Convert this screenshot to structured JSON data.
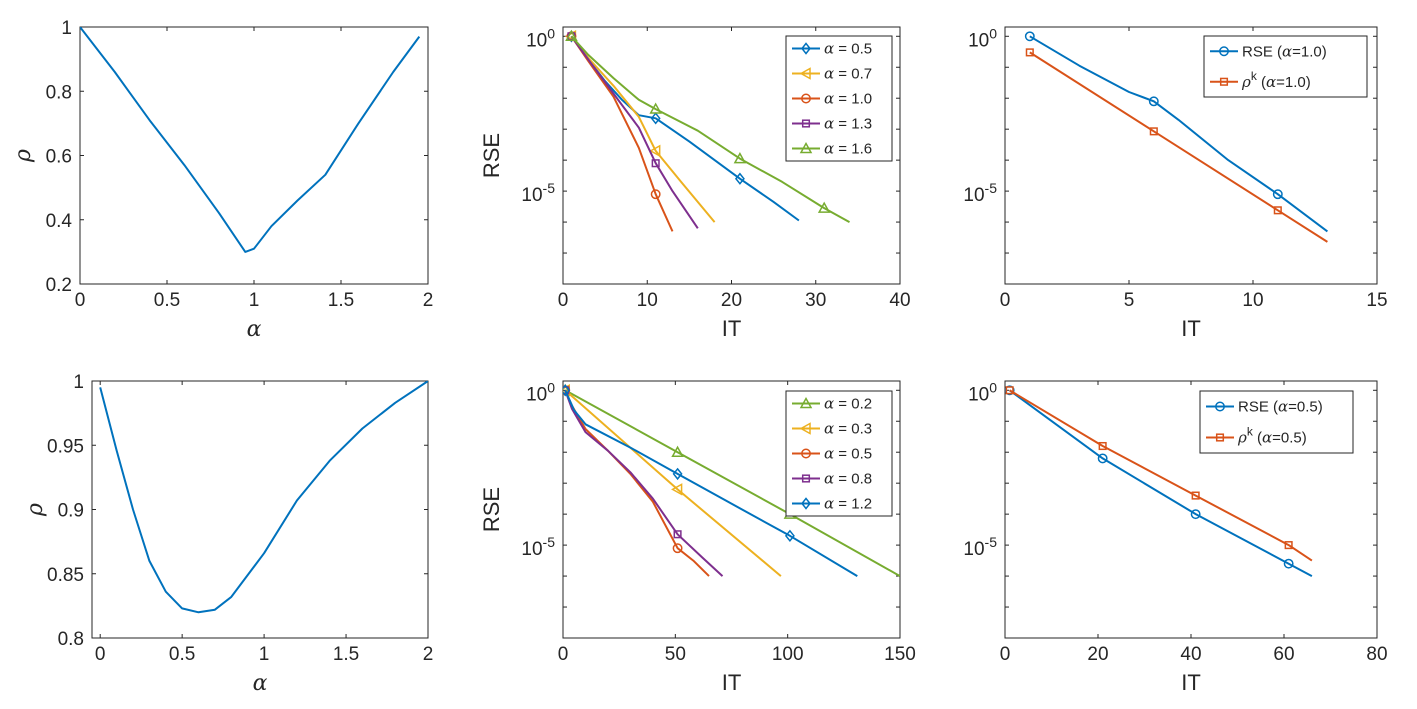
{
  "colors": {
    "blue": "#0072BD",
    "orange": "#D95319",
    "yellow": "#EDB120",
    "purple": "#7E2F8E",
    "green": "#77AC30",
    "axis": "#262626"
  },
  "chart_data": [
    {
      "id": "top-left",
      "type": "line",
      "yscale": "linear",
      "xlabel": "α",
      "ylabel": "ρ",
      "xlim": [
        0,
        2
      ],
      "ylim": [
        0.2,
        1
      ],
      "xticks": [
        0,
        0.5,
        1,
        1.5,
        2
      ],
      "xtick_labels": [
        "0",
        "0.5",
        "1",
        "1.5",
        "2"
      ],
      "yticks": [
        0.2,
        0.4,
        0.6,
        0.8,
        1
      ],
      "ytick_labels": [
        "0.2",
        "0.4",
        "0.6",
        "0.8",
        "1"
      ],
      "legend": null,
      "series": [
        {
          "name": "rho",
          "color": "blue",
          "marker": "none",
          "x": [
            0,
            0.2,
            0.4,
            0.6,
            0.8,
            0.95,
            1.0,
            1.1,
            1.25,
            1.41,
            1.6,
            1.8,
            1.95
          ],
          "y": [
            1.0,
            0.86,
            0.71,
            0.57,
            0.42,
            0.3,
            0.31,
            0.38,
            0.46,
            0.54,
            0.7,
            0.86,
            0.97
          ]
        }
      ]
    },
    {
      "id": "top-middle",
      "type": "line",
      "yscale": "log",
      "xlabel": "IT",
      "ylabel": "RSE",
      "xlim": [
        0,
        40
      ],
      "ylim_exp": [
        -8,
        0.3
      ],
      "xticks": [
        0,
        10,
        20,
        30,
        40
      ],
      "xtick_labels": [
        "0",
        "10",
        "20",
        "30",
        "40"
      ],
      "yticks_exp": [
        0,
        -5
      ],
      "ytick_base": "10",
      "ytick_exponents": [
        "0",
        "-5"
      ],
      "legend": "top-right",
      "series": [
        {
          "name": "α = 0.5",
          "color": "blue",
          "marker": "diamond",
          "x": [
            1,
            3,
            5,
            7,
            9,
            11,
            15,
            21,
            25,
            28
          ],
          "y_exp": [
            0,
            -0.75,
            -1.45,
            -2.05,
            -2.55,
            -2.65,
            -3.4,
            -4.6,
            -5.35,
            -5.95
          ],
          "marker_x": [
            1,
            11,
            21
          ],
          "marker_y_exp": [
            0,
            -2.65,
            -4.6
          ]
        },
        {
          "name": "α = 0.7",
          "color": "yellow",
          "marker": "triangle-left",
          "x": [
            1,
            3,
            6,
            9,
            11,
            14,
            18
          ],
          "y_exp": [
            0,
            -0.7,
            -1.6,
            -2.6,
            -3.7,
            -4.7,
            -6.0
          ],
          "marker_x": [
            1,
            11
          ],
          "marker_y_exp": [
            0,
            -3.7
          ]
        },
        {
          "name": "α = 1.0",
          "color": "orange",
          "marker": "circle",
          "x": [
            1,
            3,
            6,
            9,
            11,
            13
          ],
          "y_exp": [
            0,
            -0.8,
            -1.95,
            -3.6,
            -5.1,
            -6.3
          ],
          "marker_x": [
            1,
            11
          ],
          "marker_y_exp": [
            0,
            -5.1
          ]
        },
        {
          "name": "α = 1.3",
          "color": "purple",
          "marker": "square",
          "x": [
            1,
            3,
            6,
            9,
            11,
            13,
            16
          ],
          "y_exp": [
            0,
            -0.75,
            -1.85,
            -2.95,
            -4.1,
            -5.0,
            -6.2
          ],
          "marker_x": [
            1,
            11
          ],
          "marker_y_exp": [
            0,
            -4.1
          ]
        },
        {
          "name": "α = 1.6",
          "color": "green",
          "marker": "triangle-up",
          "x": [
            1,
            3,
            6,
            9,
            11,
            16,
            21,
            26,
            31,
            34
          ],
          "y_exp": [
            0,
            -0.6,
            -1.35,
            -2.05,
            -2.35,
            -3.05,
            -3.95,
            -4.7,
            -5.55,
            -6.0
          ],
          "marker_x": [
            1,
            11,
            21,
            31
          ],
          "marker_y_exp": [
            0,
            -2.35,
            -3.95,
            -5.55
          ]
        }
      ]
    },
    {
      "id": "top-right",
      "type": "line",
      "yscale": "log",
      "xlabel": "IT",
      "ylabel": "",
      "xlim": [
        0,
        15
      ],
      "ylim_exp": [
        -8,
        0.3
      ],
      "xticks": [
        0,
        5,
        10,
        15
      ],
      "xtick_labels": [
        "0",
        "5",
        "10",
        "15"
      ],
      "yticks_exp": [
        0,
        -5
      ],
      "ytick_base": "10",
      "ytick_exponents": [
        "0",
        "-5"
      ],
      "legend": "top-right",
      "series": [
        {
          "name": "RSE (α=1.0)",
          "legend_base": "RSE (",
          "legend_mid": "=1.0)",
          "color": "blue",
          "marker": "circle",
          "x": [
            1,
            3,
            5,
            6,
            7,
            9,
            11,
            13
          ],
          "y_exp": [
            0,
            -0.95,
            -1.8,
            -2.1,
            -2.7,
            -4.0,
            -5.1,
            -6.3
          ],
          "marker_x": [
            1,
            6,
            11
          ],
          "marker_y_exp": [
            0,
            -2.1,
            -5.1
          ]
        },
        {
          "name": "ρ^k (α=1.0)",
          "legend_base": "ρ",
          "legend_sup": "k",
          "legend_mid": "=1.0)",
          "color": "orange",
          "marker": "square",
          "x": [
            1,
            6,
            11,
            13
          ],
          "y_exp": [
            -0.52,
            -3.07,
            -5.62,
            -6.64
          ],
          "marker_x": [
            1,
            6,
            11
          ],
          "marker_y_exp": [
            -0.52,
            -3.07,
            -5.62
          ]
        }
      ]
    },
    {
      "id": "bottom-left",
      "type": "line",
      "yscale": "linear",
      "xlabel": "α",
      "ylabel": "ρ",
      "xlim": [
        -0.05,
        2
      ],
      "ylim": [
        0.8,
        1
      ],
      "xticks": [
        0,
        0.5,
        1,
        1.5,
        2
      ],
      "xtick_labels": [
        "0",
        "0.5",
        "1",
        "1.5",
        "2"
      ],
      "yticks": [
        0.8,
        0.85,
        0.9,
        0.95,
        1
      ],
      "ytick_labels": [
        "0.8",
        "0.85",
        "0.9",
        "0.95",
        "1"
      ],
      "legend": null,
      "series": [
        {
          "name": "rho",
          "color": "blue",
          "marker": "none",
          "x": [
            0,
            0.1,
            0.2,
            0.3,
            0.4,
            0.5,
            0.6,
            0.7,
            0.8,
            1.0,
            1.2,
            1.4,
            1.6,
            1.8,
            2.0
          ],
          "y": [
            0.995,
            0.946,
            0.9,
            0.86,
            0.836,
            0.823,
            0.82,
            0.822,
            0.832,
            0.866,
            0.907,
            0.938,
            0.963,
            0.983,
            1.0
          ]
        }
      ]
    },
    {
      "id": "bottom-middle",
      "type": "line",
      "yscale": "log",
      "xlabel": "IT",
      "ylabel": "RSE",
      "xlim": [
        0,
        150
      ],
      "ylim_exp": [
        -8,
        0.3
      ],
      "xticks": [
        0,
        50,
        100,
        150
      ],
      "xtick_labels": [
        "0",
        "50",
        "100",
        "150"
      ],
      "yticks_exp": [
        0,
        -5
      ],
      "ytick_base": "10",
      "ytick_exponents": [
        "0",
        "-5"
      ],
      "legend": "top-right",
      "series": [
        {
          "name": "α = 0.2",
          "color": "green",
          "marker": "triangle-up",
          "x": [
            1,
            51,
            101,
            150
          ],
          "y_exp": [
            0,
            -2.0,
            -4.0,
            -6.0
          ],
          "marker_x": [
            1,
            51,
            101
          ],
          "marker_y_exp": [
            0,
            -2.0,
            -4.0
          ]
        },
        {
          "name": "α = 0.3",
          "color": "yellow",
          "marker": "triangle-left",
          "x": [
            1,
            51,
            97
          ],
          "y_exp": [
            0,
            -3.2,
            -6.0
          ],
          "marker_x": [
            1,
            51
          ],
          "marker_y_exp": [
            0,
            -3.2
          ]
        },
        {
          "name": "α = 0.5",
          "color": "orange",
          "marker": "circle",
          "x": [
            1,
            4,
            10,
            20,
            30,
            40,
            51,
            58,
            65
          ],
          "y_exp": [
            0,
            -0.5,
            -1.25,
            -1.95,
            -2.7,
            -3.6,
            -5.1,
            -5.5,
            -6.0
          ],
          "marker_x": [
            1,
            51
          ],
          "marker_y_exp": [
            0,
            -5.1
          ]
        },
        {
          "name": "α = 0.8",
          "color": "purple",
          "marker": "square",
          "x": [
            1,
            4,
            10,
            20,
            30,
            40,
            51,
            62,
            71
          ],
          "y_exp": [
            0,
            -0.6,
            -1.35,
            -1.95,
            -2.65,
            -3.5,
            -4.65,
            -5.4,
            -6.0
          ],
          "marker_x": [
            1,
            51
          ],
          "marker_y_exp": [
            0,
            -4.65
          ]
        },
        {
          "name": "α = 1.2",
          "color": "blue",
          "marker": "diamond",
          "x": [
            1,
            5,
            10,
            30,
            51,
            76,
            101,
            131
          ],
          "y_exp": [
            0,
            -0.65,
            -1.1,
            -1.85,
            -2.7,
            -3.7,
            -4.7,
            -6.0
          ],
          "marker_x": [
            1,
            51,
            101
          ],
          "marker_y_exp": [
            0,
            -2.7,
            -4.7
          ]
        }
      ]
    },
    {
      "id": "bottom-right",
      "type": "line",
      "yscale": "log",
      "xlabel": "IT",
      "ylabel": "",
      "xlim": [
        0,
        80
      ],
      "ylim_exp": [
        -8,
        0.3
      ],
      "xticks": [
        0,
        20,
        40,
        60,
        80
      ],
      "xtick_labels": [
        "0",
        "20",
        "40",
        "60",
        "80"
      ],
      "yticks_exp": [
        0,
        -5
      ],
      "ytick_base": "10",
      "ytick_exponents": [
        "0",
        "-5"
      ],
      "legend": "top-right",
      "series": [
        {
          "name": "RSE (α=0.5)",
          "legend_base": "RSE (",
          "legend_mid": "=0.5)",
          "color": "blue",
          "marker": "circle",
          "x": [
            1,
            21,
            41,
            61,
            66
          ],
          "y_exp": [
            0,
            -2.2,
            -4.0,
            -5.6,
            -6.0
          ],
          "marker_x": [
            1,
            21,
            41,
            61
          ],
          "marker_y_exp": [
            0,
            -2.2,
            -4.0,
            -5.6
          ]
        },
        {
          "name": "ρ^k (α=0.5)",
          "legend_base": "ρ",
          "legend_sup": "k",
          "legend_mid": "=0.5)",
          "color": "orange",
          "marker": "square",
          "x": [
            1,
            21,
            41,
            61,
            66
          ],
          "y_exp": [
            0,
            -1.8,
            -3.4,
            -5.0,
            -5.5
          ],
          "marker_x": [
            1,
            21,
            41,
            61
          ],
          "marker_y_exp": [
            0,
            -1.8,
            -3.4,
            -5.0
          ]
        }
      ]
    }
  ]
}
